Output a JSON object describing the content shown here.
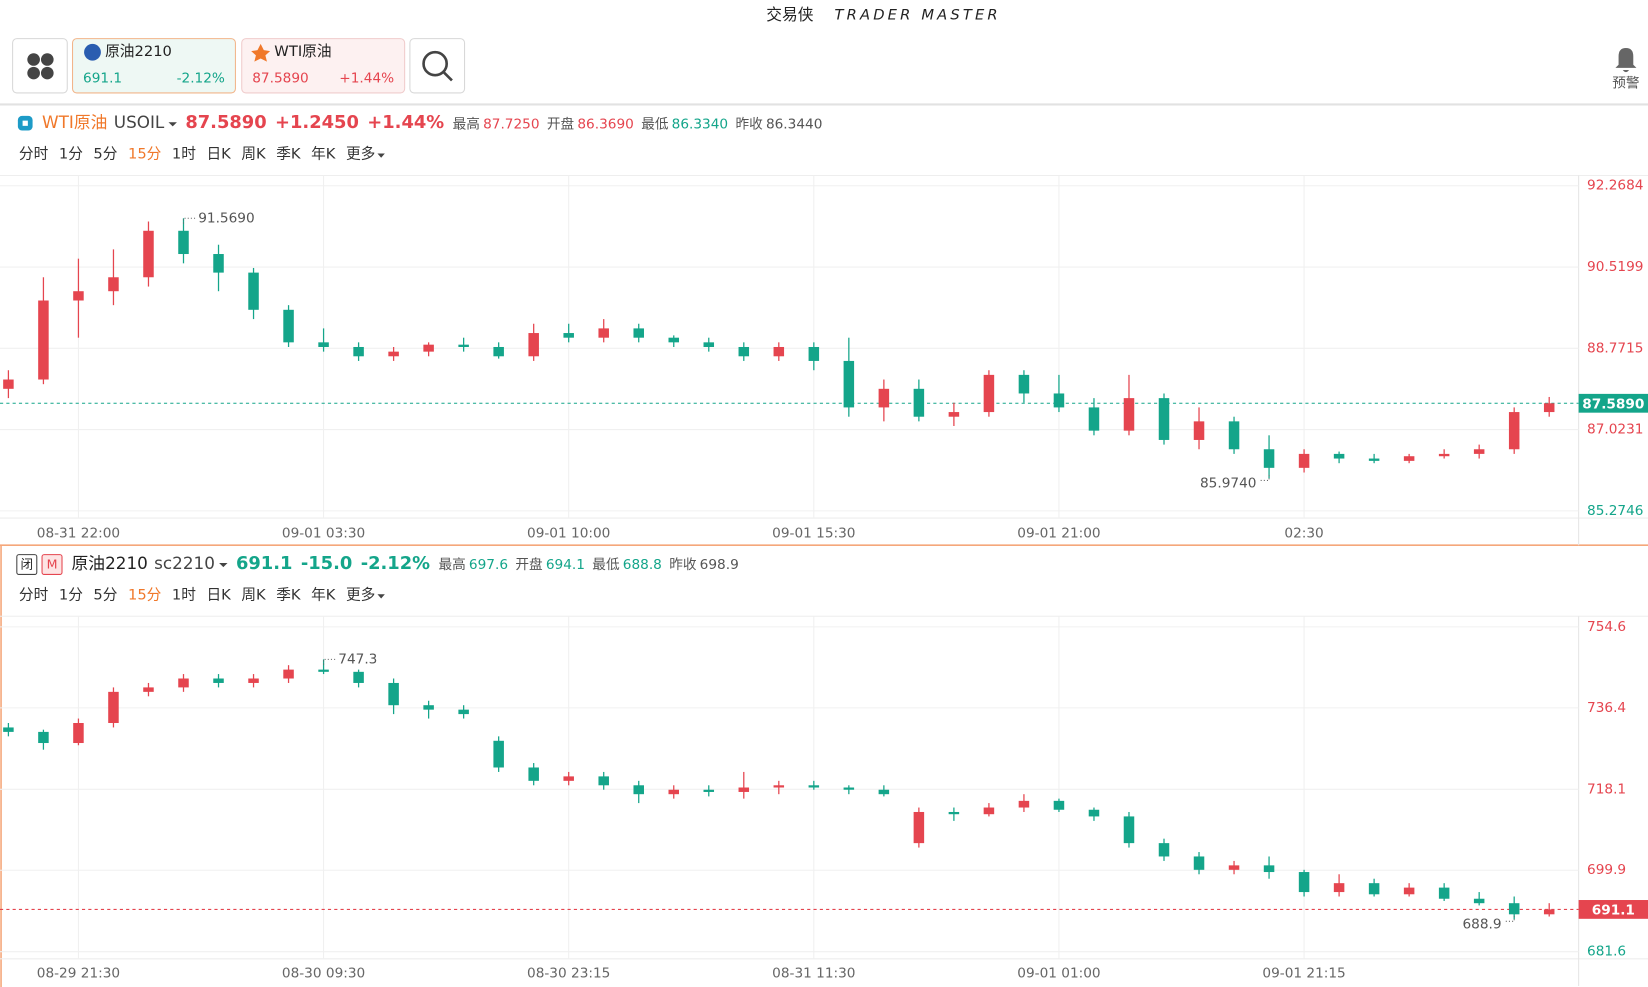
{
  "header": {
    "brand_cn": "交易侠",
    "brand_en": "TRADER MASTER",
    "tabs": [
      {
        "name": "原油2210",
        "price": "691.1",
        "change": "-2.12%"
      },
      {
        "name": "WTI原油",
        "price": "87.5890",
        "change": "+1.44%"
      }
    ],
    "alert": "预警"
  },
  "chart_data": [
    {
      "type": "candlestick",
      "name": "WTI原油",
      "code": "USOIL",
      "price": "87.5890",
      "change": "+1.2450",
      "pct": "+1.44%",
      "price_color": "#e5454f",
      "stats": [
        {
          "label": "最高",
          "value": "87.7250",
          "color": "#e5454f"
        },
        {
          "label": "开盘",
          "value": "86.3690",
          "color": "#e5454f"
        },
        {
          "label": "最低",
          "value": "86.3340",
          "color": "#14a58a"
        },
        {
          "label": "昨收",
          "value": "86.3440",
          "color": "#555555"
        }
      ],
      "periods": [
        "分时",
        "1分",
        "5分",
        "15分",
        "1时",
        "日K",
        "周K",
        "季K",
        "年K",
        "更多"
      ],
      "active_period": 3,
      "up_color": "#e5454f",
      "down_color": "#14a58a",
      "categories": [
        null,
        null,
        "08-31 22:00",
        null,
        null,
        null,
        null,
        null,
        null,
        "09-01 03:30",
        null,
        null,
        null,
        null,
        null,
        null,
        "09-01 10:00",
        null,
        null,
        null,
        null,
        null,
        null,
        "09-01 15:30",
        null,
        null,
        null,
        null,
        null,
        null,
        "09-01 21:00",
        null,
        null,
        null,
        null,
        null,
        null,
        "02:30",
        null,
        null,
        null,
        null,
        null,
        null,
        null
      ],
      "candles": [
        [
          87.9,
          88.3,
          87.7,
          88.1
        ],
        [
          88.1,
          90.3,
          88.0,
          89.8
        ],
        [
          89.8,
          90.7,
          89.0,
          90.0
        ],
        [
          90.0,
          90.9,
          89.7,
          90.3
        ],
        [
          90.3,
          91.5,
          90.1,
          91.3
        ],
        [
          91.3,
          91.569,
          90.6,
          90.8
        ],
        [
          90.8,
          91.0,
          90.0,
          90.4
        ],
        [
          90.4,
          90.5,
          89.4,
          89.6
        ],
        [
          89.6,
          89.7,
          88.8,
          88.9
        ],
        [
          88.9,
          89.2,
          88.7,
          88.8
        ],
        [
          88.8,
          88.9,
          88.5,
          88.6
        ],
        [
          88.6,
          88.8,
          88.5,
          88.7
        ],
        [
          88.7,
          88.9,
          88.6,
          88.85
        ],
        [
          88.85,
          89.0,
          88.7,
          88.8
        ],
        [
          88.8,
          88.9,
          88.55,
          88.6
        ],
        [
          88.6,
          89.3,
          88.5,
          89.1
        ],
        [
          89.1,
          89.3,
          88.9,
          89.0
        ],
        [
          89.0,
          89.4,
          88.9,
          89.2
        ],
        [
          89.2,
          89.3,
          88.9,
          89.0
        ],
        [
          89.0,
          89.05,
          88.8,
          88.9
        ],
        [
          88.9,
          89.0,
          88.7,
          88.8
        ],
        [
          88.8,
          88.9,
          88.5,
          88.6
        ],
        [
          88.6,
          88.9,
          88.5,
          88.8
        ],
        [
          88.8,
          88.9,
          88.3,
          88.5
        ],
        [
          88.5,
          89.0,
          87.3,
          87.5
        ],
        [
          87.5,
          88.1,
          87.2,
          87.9
        ],
        [
          87.9,
          88.1,
          87.2,
          87.3
        ],
        [
          87.3,
          87.6,
          87.1,
          87.4
        ],
        [
          87.4,
          88.3,
          87.3,
          88.2
        ],
        [
          88.2,
          88.3,
          87.6,
          87.8
        ],
        [
          87.8,
          88.2,
          87.4,
          87.5
        ],
        [
          87.5,
          87.7,
          86.9,
          87.0
        ],
        [
          87.0,
          88.2,
          86.9,
          87.7
        ],
        [
          87.7,
          87.8,
          86.7,
          86.8
        ],
        [
          86.8,
          87.5,
          86.6,
          87.2
        ],
        [
          87.2,
          87.3,
          86.5,
          86.6
        ],
        [
          86.6,
          86.9,
          85.974,
          86.2
        ],
        [
          86.2,
          86.6,
          86.1,
          86.5
        ],
        [
          86.5,
          86.55,
          86.3,
          86.4
        ],
        [
          86.4,
          86.5,
          86.3,
          86.35
        ],
        [
          86.35,
          86.5,
          86.3,
          86.45
        ],
        [
          86.45,
          86.6,
          86.4,
          86.5
        ],
        [
          86.5,
          86.7,
          86.4,
          86.6
        ],
        [
          86.6,
          87.5,
          86.5,
          87.4
        ],
        [
          87.4,
          87.725,
          87.3,
          87.589
        ]
      ],
      "ylim": [
        85.12,
        92.49
      ],
      "yticks": [
        92.2684,
        90.5199,
        88.7715,
        87.0231,
        85.2746
      ],
      "last": {
        "value": 87.589,
        "label": "87.5890",
        "color": "#14a58a"
      },
      "high": {
        "value": 91.569,
        "label": "91.5690"
      },
      "low": {
        "value": 85.974,
        "label": "85.9740"
      }
    },
    {
      "type": "candlestick",
      "badges": [
        "闭",
        "M"
      ],
      "name": "原油2210",
      "code": "sc2210",
      "price": "691.1",
      "change": "-15.0",
      "pct": "-2.12%",
      "price_color": "#14a58a",
      "stats": [
        {
          "label": "最高",
          "value": "697.6",
          "color": "#14a58a"
        },
        {
          "label": "开盘",
          "value": "694.1",
          "color": "#14a58a"
        },
        {
          "label": "最低",
          "value": "688.8",
          "color": "#14a58a"
        },
        {
          "label": "昨收",
          "value": "698.9",
          "color": "#555555"
        }
      ],
      "periods": [
        "分时",
        "1分",
        "5分",
        "15分",
        "1时",
        "日K",
        "周K",
        "季K",
        "年K",
        "更多"
      ],
      "active_period": 3,
      "up_color": "#e5454f",
      "down_color": "#14a58a",
      "categories": [
        null,
        null,
        "08-29 21:30",
        null,
        null,
        null,
        null,
        null,
        null,
        "08-30 09:30",
        null,
        null,
        null,
        null,
        null,
        null,
        "08-30 23:15",
        null,
        null,
        null,
        null,
        null,
        null,
        "08-31 11:30",
        null,
        null,
        null,
        null,
        null,
        null,
        "09-01 01:00",
        null,
        null,
        null,
        null,
        null,
        null,
        "09-01 21:15",
        null,
        null,
        null,
        null,
        null,
        null,
        null
      ],
      "candles": [
        [
          732,
          733,
          730,
          731
        ],
        [
          731,
          731.5,
          727,
          728.5
        ],
        [
          728.5,
          734,
          728,
          733
        ],
        [
          733,
          741,
          732,
          740
        ],
        [
          740,
          742,
          739,
          741
        ],
        [
          741,
          744,
          740,
          743
        ],
        [
          743,
          744,
          741,
          742
        ],
        [
          742,
          744,
          741,
          743
        ],
        [
          743,
          746,
          742,
          745
        ],
        [
          745,
          747.3,
          744,
          744.5
        ],
        [
          744.5,
          745,
          741,
          742
        ],
        [
          742,
          743,
          735,
          737
        ],
        [
          737,
          738,
          734,
          736
        ],
        [
          736,
          737,
          734,
          735
        ],
        [
          729,
          730,
          722,
          723
        ],
        [
          723,
          724,
          719,
          720
        ],
        [
          720,
          722,
          719,
          721
        ],
        [
          721,
          722,
          718,
          719
        ],
        [
          719,
          720,
          715,
          717
        ],
        [
          717,
          719,
          716,
          718
        ],
        [
          718,
          719,
          716.5,
          717.5
        ],
        [
          717.5,
          722,
          716,
          718.5
        ],
        [
          718.5,
          720,
          717,
          719
        ],
        [
          719,
          720,
          718,
          718.5
        ],
        [
          718.5,
          719,
          717,
          718
        ],
        [
          718,
          719,
          716.5,
          717
        ],
        [
          706,
          714,
          705,
          713
        ],
        [
          713,
          714,
          711,
          712.5
        ],
        [
          712.5,
          715,
          712,
          714
        ],
        [
          714,
          717,
          713,
          715.5
        ],
        [
          715.5,
          716,
          713,
          713.5
        ],
        [
          713.5,
          714,
          711,
          712
        ],
        [
          712,
          713,
          705,
          706
        ],
        [
          706,
          707,
          702,
          703
        ],
        [
          703,
          704,
          699,
          700
        ],
        [
          700,
          702,
          699,
          701
        ],
        [
          701,
          703,
          698,
          699.5
        ],
        [
          699.5,
          700,
          694,
          695
        ],
        [
          695,
          699,
          694,
          697
        ],
        [
          697,
          698,
          694,
          694.5
        ],
        [
          694.5,
          697,
          694,
          696
        ],
        [
          696,
          697,
          693,
          693.5
        ],
        [
          693.5,
          695,
          692,
          692.5
        ],
        [
          692.5,
          694,
          688.9,
          690
        ],
        [
          690,
          692.5,
          689.5,
          691.1
        ]
      ],
      "ylim": [
        680,
        757
      ],
      "yticks": [
        754.6,
        736.4,
        718.1,
        699.9,
        681.6
      ],
      "last": {
        "value": 691.1,
        "label": "691.1",
        "color": "#e5454f"
      },
      "high": {
        "value": 747.3,
        "label": "747.3"
      },
      "low": {
        "value": 688.9,
        "label": "688.9"
      }
    }
  ]
}
